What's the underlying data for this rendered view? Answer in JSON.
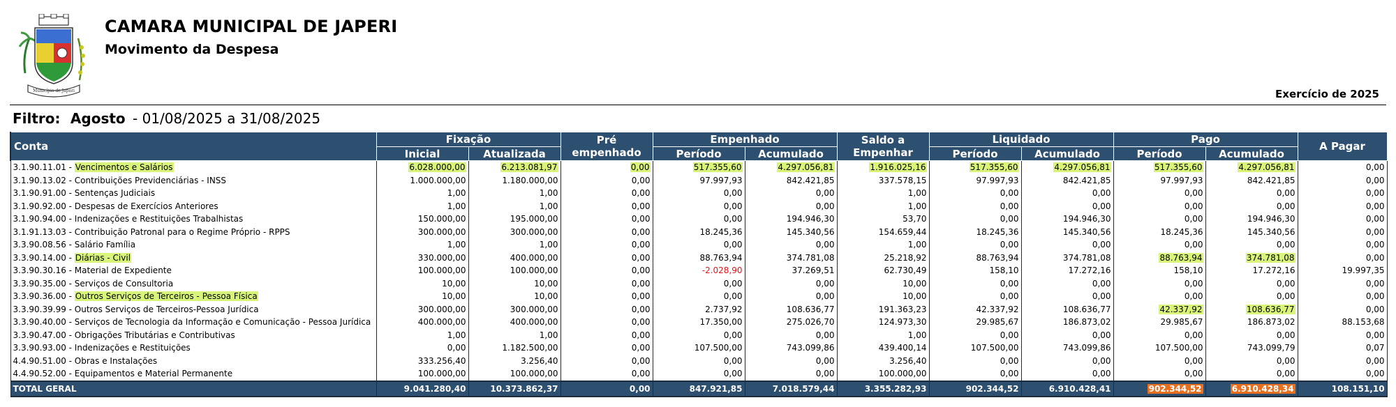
{
  "header": {
    "org_name": "CAMARA MUNICIPAL DE JAPERI",
    "report_title": "Movimento da Despesa",
    "fiscal_year": "Exercício de 2025",
    "logo_ribbon_text": "Município de Japeri"
  },
  "filter": {
    "label": "Filtro:",
    "period_name": "Agosto",
    "range": "- 01/08/2025 a 31/08/2025"
  },
  "columns": {
    "conta": "Conta",
    "fixacao": "Fixação",
    "inicial": "Inicial",
    "atualizada": "Atualizada",
    "pre_empenhado": "Pré empenhado",
    "empenhado": "Empenhado",
    "periodo": "Período",
    "acumulado": "Acumulado",
    "saldo_a_empenhar": "Saldo a Empenhar",
    "liquidado": "Liquidado",
    "pago": "Pago",
    "a_pagar": "A Pagar"
  },
  "colors": {
    "header_bg": "#2e5070",
    "highlight_green": "#d8f57a",
    "highlight_orange": "#e86f1e",
    "negative_red": "#e0161b"
  },
  "rows": [
    {
      "conta": "3.1.90.11.01 - ",
      "desc": "Vencimentos e Salários",
      "inicial": "6.028.000,00",
      "atualizada": "6.213.081,97",
      "pre": "0,00",
      "emp_per": "517.355,60",
      "emp_acu": "4.297.056,81",
      "saldo": "1.916.025,16",
      "liq_per": "517.355,60",
      "liq_acu": "4.297.056,81",
      "pago_per": "517.355,60",
      "pago_acu": "4.297.056,81",
      "a_pagar": "0,00"
    },
    {
      "conta": "3.1.90.13.02 - ",
      "desc": "Contribuições Previdenciárias - INSS",
      "inicial": "1.000.000,00",
      "atualizada": "1.180.000,00",
      "pre": "0,00",
      "emp_per": "97.997,93",
      "emp_acu": "842.421,85",
      "saldo": "337.578,15",
      "liq_per": "97.997,93",
      "liq_acu": "842.421,85",
      "pago_per": "97.997,93",
      "pago_acu": "842.421,85",
      "a_pagar": "0,00"
    },
    {
      "conta": "3.1.90.91.00 - ",
      "desc": "Sentenças Judiciais",
      "inicial": "1,00",
      "atualizada": "1,00",
      "pre": "0,00",
      "emp_per": "0,00",
      "emp_acu": "0,00",
      "saldo": "1,00",
      "liq_per": "0,00",
      "liq_acu": "0,00",
      "pago_per": "0,00",
      "pago_acu": "0,00",
      "a_pagar": "0,00"
    },
    {
      "conta": "3.1.90.92.00 - ",
      "desc": "Despesas de Exercícios Anteriores",
      "inicial": "1,00",
      "atualizada": "1,00",
      "pre": "0,00",
      "emp_per": "0,00",
      "emp_acu": "0,00",
      "saldo": "1,00",
      "liq_per": "0,00",
      "liq_acu": "0,00",
      "pago_per": "0,00",
      "pago_acu": "0,00",
      "a_pagar": "0,00"
    },
    {
      "conta": "3.1.90.94.00 - ",
      "desc": "Indenizações e Restituições Trabalhistas",
      "inicial": "150.000,00",
      "atualizada": "195.000,00",
      "pre": "0,00",
      "emp_per": "0,00",
      "emp_acu": "194.946,30",
      "saldo": "53,70",
      "liq_per": "0,00",
      "liq_acu": "194.946,30",
      "pago_per": "0,00",
      "pago_acu": "194.946,30",
      "a_pagar": "0,00"
    },
    {
      "conta": "3.1.91.13.03 - ",
      "desc": "Contribuição Patronal para o Regime Próprio - RPPS",
      "inicial": "300.000,00",
      "atualizada": "300.000,00",
      "pre": "0,00",
      "emp_per": "18.245,36",
      "emp_acu": "145.340,56",
      "saldo": "154.659,44",
      "liq_per": "18.245,36",
      "liq_acu": "145.340,56",
      "pago_per": "18.245,36",
      "pago_acu": "145.340,56",
      "a_pagar": "0,00"
    },
    {
      "conta": "3.3.90.08.56 - ",
      "desc": "Salário Família",
      "inicial": "1,00",
      "atualizada": "1,00",
      "pre": "0,00",
      "emp_per": "0,00",
      "emp_acu": "0,00",
      "saldo": "1,00",
      "liq_per": "0,00",
      "liq_acu": "0,00",
      "pago_per": "0,00",
      "pago_acu": "0,00",
      "a_pagar": "0,00"
    },
    {
      "conta": "3.3.90.14.00 - ",
      "desc": "Diárias - Civil",
      "inicial": "330.000,00",
      "atualizada": "400.000,00",
      "pre": "0,00",
      "emp_per": "88.763,94",
      "emp_acu": "374.781,08",
      "saldo": "25.218,92",
      "liq_per": "88.763,94",
      "liq_acu": "374.781,08",
      "pago_per": "88.763,94",
      "pago_acu": "374.781,08",
      "a_pagar": "0,00"
    },
    {
      "conta": "3.3.90.30.16 - ",
      "desc": "Material de Expediente",
      "inicial": "100.000,00",
      "atualizada": "100.000,00",
      "pre": "0,00",
      "emp_per": "-2.028,90",
      "emp_acu": "37.269,51",
      "saldo": "62.730,49",
      "liq_per": "158,10",
      "liq_acu": "17.272,16",
      "pago_per": "158,10",
      "pago_acu": "17.272,16",
      "a_pagar": "19.997,35"
    },
    {
      "conta": "3.3.90.35.00 - ",
      "desc": "Serviços de Consultoria",
      "inicial": "10,00",
      "atualizada": "10,00",
      "pre": "0,00",
      "emp_per": "0,00",
      "emp_acu": "0,00",
      "saldo": "10,00",
      "liq_per": "0,00",
      "liq_acu": "0,00",
      "pago_per": "0,00",
      "pago_acu": "0,00",
      "a_pagar": "0,00"
    },
    {
      "conta": "3.3.90.36.00 - ",
      "desc": "Outros Serviços de Terceiros - Pessoa Física",
      "inicial": "10,00",
      "atualizada": "10,00",
      "pre": "0,00",
      "emp_per": "0,00",
      "emp_acu": "0,00",
      "saldo": "10,00",
      "liq_per": "0,00",
      "liq_acu": "0,00",
      "pago_per": "0,00",
      "pago_acu": "0,00",
      "a_pagar": "0,00"
    },
    {
      "conta": "3.3.90.39.99 - ",
      "desc": "Outros Serviços de Terceiros-Pessoa Jurídica",
      "inicial": "300.000,00",
      "atualizada": "300.000,00",
      "pre": "0,00",
      "emp_per": "2.737,92",
      "emp_acu": "108.636,77",
      "saldo": "191.363,23",
      "liq_per": "42.337,92",
      "liq_acu": "108.636,77",
      "pago_per": "42.337,92",
      "pago_acu": "108.636,77",
      "a_pagar": "0,00"
    },
    {
      "conta": "3.3.90.40.00 - ",
      "desc": "Serviços de Tecnologia da Informação e Comunicação - Pessoa Jurídica",
      "inicial": "400.000,00",
      "atualizada": "400.000,00",
      "pre": "0,00",
      "emp_per": "17.350,00",
      "emp_acu": "275.026,70",
      "saldo": "124.973,30",
      "liq_per": "29.985,67",
      "liq_acu": "186.873,02",
      "pago_per": "29.985,67",
      "pago_acu": "186.873,02",
      "a_pagar": "88.153,68"
    },
    {
      "conta": "3.3.90.47.00 - ",
      "desc": "Obrigações Tributárias e Contributivas",
      "inicial": "1,00",
      "atualizada": "1,00",
      "pre": "0,00",
      "emp_per": "0,00",
      "emp_acu": "0,00",
      "saldo": "1,00",
      "liq_per": "0,00",
      "liq_acu": "0,00",
      "pago_per": "0,00",
      "pago_acu": "0,00",
      "a_pagar": "0,00"
    },
    {
      "conta": "3.3.90.93.00 - ",
      "desc": "Indenizações e Restituições",
      "inicial": "0,00",
      "atualizada": "1.182.500,00",
      "pre": "0,00",
      "emp_per": "107.500,00",
      "emp_acu": "743.099,86",
      "saldo": "439.400,14",
      "liq_per": "107.500,00",
      "liq_acu": "743.099,86",
      "pago_per": "107.500,00",
      "pago_acu": "743.099,79",
      "a_pagar": "0,07"
    },
    {
      "conta": "4.4.90.51.00 - ",
      "desc": "Obras e Instalações",
      "inicial": "333.256,40",
      "atualizada": "3.256,40",
      "pre": "0,00",
      "emp_per": "0,00",
      "emp_acu": "0,00",
      "saldo": "3.256,40",
      "liq_per": "0,00",
      "liq_acu": "0,00",
      "pago_per": "0,00",
      "pago_acu": "0,00",
      "a_pagar": "0,00"
    },
    {
      "conta": "4.4.90.52.00 - ",
      "desc": "Equipamentos e Material Permanente",
      "inicial": "100.000,00",
      "atualizada": "100.000,00",
      "pre": "0,00",
      "emp_per": "0,00",
      "emp_acu": "0,00",
      "saldo": "100.000,00",
      "liq_per": "0,00",
      "liq_acu": "0,00",
      "pago_per": "0,00",
      "pago_acu": "0,00",
      "a_pagar": "0,00"
    }
  ],
  "total": {
    "label": "TOTAL GERAL",
    "inicial": "9.041.280,40",
    "atualizada": "10.373.862,37",
    "pre": "0,00",
    "emp_per": "847.921,85",
    "emp_acu": "7.018.579,44",
    "saldo": "3.355.282,93",
    "liq_per": "902.344,52",
    "liq_acu": "6.910.428,41",
    "pago_per": "902.344,52",
    "pago_acu": "6.910.428,34",
    "a_pagar": "108.151,10"
  }
}
